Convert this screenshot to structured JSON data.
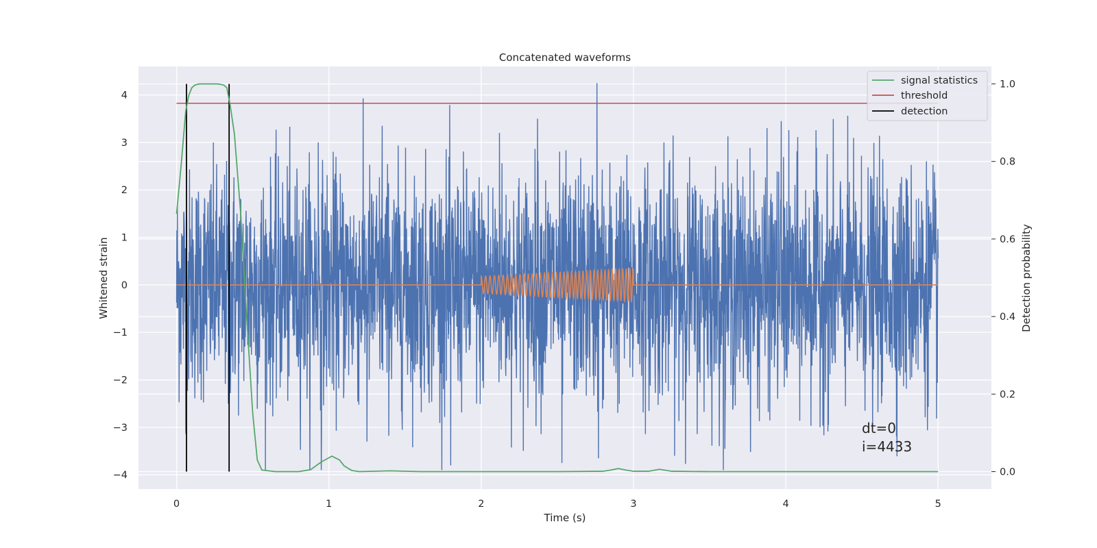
{
  "chart_data": {
    "type": "line",
    "title": "Concatenated waveforms",
    "xlabel": "Time (s)",
    "ylabel": "Whitened strain",
    "y2label": "Detection probability",
    "xlim": [
      -0.25,
      5.35
    ],
    "ylim": [
      -4.3,
      4.6
    ],
    "y2lim": [
      -0.045,
      1.045
    ],
    "xticks": [
      0,
      1,
      2,
      3,
      4,
      5
    ],
    "xtick_labels": [
      "0",
      "1",
      "2",
      "3",
      "4",
      "5"
    ],
    "yticks": [
      -4,
      -3,
      -2,
      -1,
      0,
      1,
      2,
      3,
      4
    ],
    "ytick_labels": [
      "−4",
      "−3",
      "−2",
      "−1",
      "0",
      "1",
      "2",
      "3",
      "4"
    ],
    "y2ticks": [
      0.0,
      0.2,
      0.4,
      0.6,
      0.8,
      1.0
    ],
    "y2tick_labels": [
      "0.0",
      "0.2",
      "0.4",
      "0.6",
      "0.8",
      "1.0"
    ],
    "grid": true,
    "legend_position": "top-right",
    "background": "#eaeaf2",
    "series": [
      {
        "name": "",
        "kind": "noise",
        "color": "#4c72b0",
        "x_range": [
          0,
          5
        ],
        "typical_amplitude": 1.6,
        "peak_max": 4.25,
        "peak_min": -3.9,
        "spikes": [
          [
            0.06,
            1.9
          ],
          [
            0.06,
            -3.05
          ],
          [
            0.34,
            2.95
          ],
          [
            0.34,
            -2.5
          ],
          [
            0.93,
            3.0
          ],
          [
            0.95,
            -3.9
          ],
          [
            1.25,
            -3.3
          ],
          [
            1.35,
            3.35
          ],
          [
            1.8,
            -3.8
          ],
          [
            2.12,
            3.2
          ],
          [
            2.37,
            3.5
          ],
          [
            2.53,
            -3.75
          ],
          [
            2.76,
            4.25
          ],
          [
            2.77,
            -3.65
          ],
          [
            3.2,
            3.0
          ],
          [
            3.6,
            -3.45
          ],
          [
            3.97,
            3.45
          ],
          [
            4.28,
            -2.95
          ],
          [
            4.52,
            -2.65
          ]
        ]
      },
      {
        "name": "",
        "kind": "injection",
        "color": "#dd8452",
        "x": [
          0,
          2,
          3,
          5
        ],
        "chirp_start": 2.0,
        "chirp_end": 3.0,
        "amplitude_start": 0.18,
        "amplitude_end": 0.35,
        "cycles": 34
      },
      {
        "name": "signal statistics",
        "axis": "right",
        "color": "#55a868",
        "x": [
          0.0,
          0.03,
          0.06,
          0.08,
          0.1,
          0.12,
          0.15,
          0.2,
          0.27,
          0.31,
          0.33,
          0.35,
          0.38,
          0.42,
          0.46,
          0.5,
          0.53,
          0.56,
          0.65,
          0.8,
          0.88,
          0.95,
          1.02,
          1.07,
          1.1,
          1.15,
          1.2,
          1.4,
          1.6,
          2.0,
          2.5,
          2.8,
          2.85,
          2.9,
          2.95,
          3.0,
          3.1,
          3.17,
          3.25,
          3.5,
          4.0,
          4.5,
          5.0
        ],
        "values": [
          0.665,
          0.79,
          0.93,
          0.97,
          0.99,
          0.997,
          1.0,
          1.0,
          1.0,
          0.997,
          0.99,
          0.95,
          0.87,
          0.67,
          0.4,
          0.15,
          0.03,
          0.004,
          0.0,
          0.0,
          0.005,
          0.025,
          0.04,
          0.03,
          0.015,
          0.003,
          0.0,
          0.002,
          0.0,
          0.0,
          0.0,
          0.001,
          0.004,
          0.008,
          0.004,
          0.001,
          0.001,
          0.006,
          0.001,
          0.0,
          0.0,
          0.0,
          0.0
        ]
      },
      {
        "name": "threshold",
        "axis": "right",
        "color": "#c44e52",
        "x": [
          0,
          5
        ],
        "values": [
          0.95,
          0.95
        ]
      },
      {
        "name": "detection",
        "axis": "right",
        "color": "#000000",
        "x": [
          0.065,
          0.345
        ],
        "ymin": 0.0,
        "ymax": 1.0
      }
    ],
    "annotations": [
      "dt=0",
      "i=4433"
    ]
  }
}
